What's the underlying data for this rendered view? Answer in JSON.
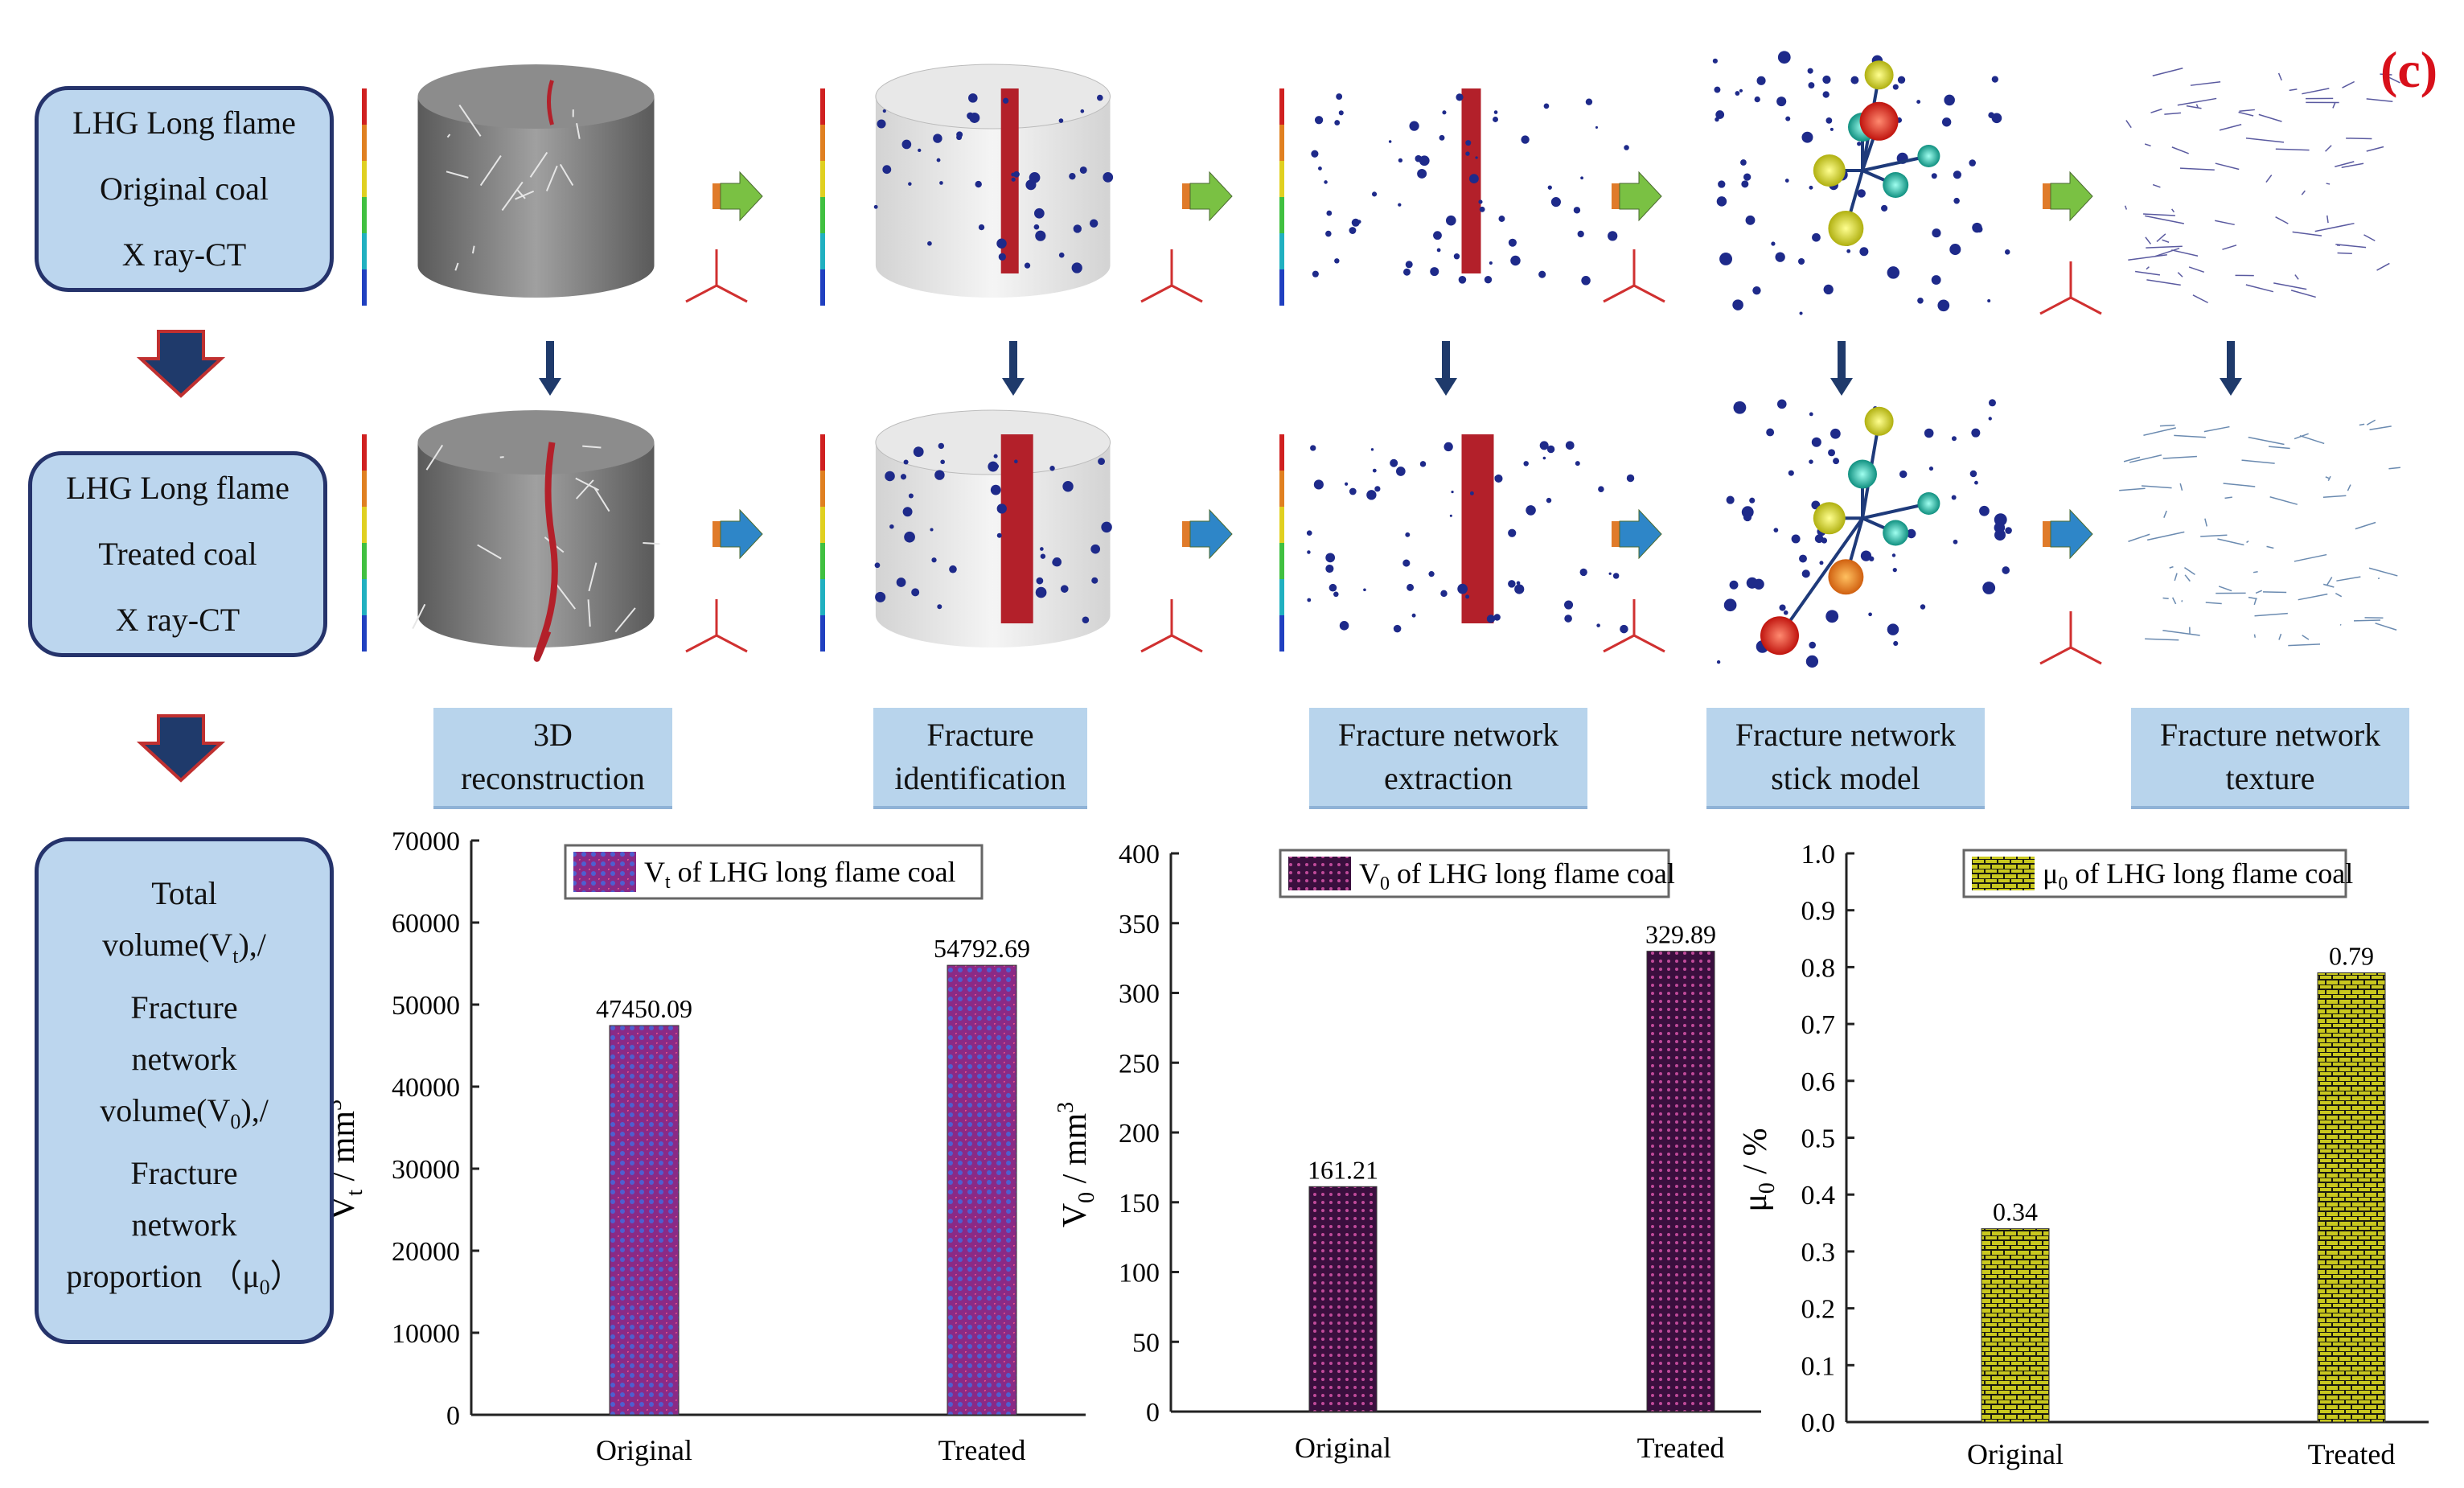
{
  "figure_tag": "(c)",
  "stages": [
    {
      "lines": [
        "LHG Long flame",
        "Original coal",
        "X ray-CT"
      ]
    },
    {
      "lines": [
        "LHG Long flame",
        "Treated coal",
        "X ray-CT"
      ]
    }
  ],
  "metrics_box": {
    "lines": [
      {
        "pre": "Total",
        "sub": "",
        "post": ""
      },
      {
        "pre": "volume(V",
        "sub": "t",
        "post": "),/"
      },
      {
        "pre": "Fracture",
        "sub": "",
        "post": ""
      },
      {
        "pre": "network",
        "sub": "",
        "post": ""
      },
      {
        "pre": "volume(V",
        "sub": "0",
        "post": "),/"
      },
      {
        "pre": "Fracture",
        "sub": "",
        "post": ""
      },
      {
        "pre": "network",
        "sub": "",
        "post": ""
      },
      {
        "pre": "proportion （μ",
        "sub": "0",
        "post": "）"
      }
    ]
  },
  "steps": [
    {
      "line1": "3D",
      "line2": "reconstruction"
    },
    {
      "line1": "Fracture",
      "line2": "identification"
    },
    {
      "line1": "Fracture network",
      "line2": "extraction"
    },
    {
      "line1": "Fracture network",
      "line2": "stick model"
    },
    {
      "line1": "Fracture network",
      "line2": "texture"
    }
  ],
  "colors": {
    "box_fill": "#bcd6ee",
    "box_border": "#25336b",
    "arrow_green": "#7ac143",
    "arrow_blue": "#2e86c8",
    "arrow_tail": "#e07b2a",
    "down_arrow": "#1f3a6b",
    "crack_red": "#b3202a",
    "tag_red": "#d8101a"
  },
  "chart_data": [
    {
      "type": "bar",
      "categories": [
        "Original",
        "Treated"
      ],
      "values": [
        47450.09,
        54792.69
      ],
      "value_labels": [
        "47450.09",
        "54792.69"
      ],
      "ylim": [
        0,
        70000
      ],
      "yticks": [
        "0",
        "10000",
        "20000",
        "30000",
        "40000",
        "50000",
        "60000",
        "70000"
      ],
      "ytick_values": [
        0,
        10000,
        20000,
        30000,
        40000,
        50000,
        60000,
        70000
      ],
      "ylabel": {
        "main": "V",
        "sub": "t",
        "unit": " / mm",
        "sup": "3"
      },
      "legend": {
        "sym": "V",
        "sub": "t",
        "text": " of LHG long flame coal",
        "placement": "top"
      },
      "fill": "#8a2a86",
      "dot": "#4e5fd0"
    },
    {
      "type": "bar",
      "categories": [
        "Original",
        "Treated"
      ],
      "values": [
        161.21,
        329.89
      ],
      "value_labels": [
        "161.21",
        "329.89"
      ],
      "ylim": [
        0,
        400
      ],
      "yticks": [
        "0",
        "50",
        "100",
        "150",
        "200",
        "250",
        "300",
        "350",
        "400"
      ],
      "ytick_values": [
        0,
        50,
        100,
        150,
        200,
        250,
        300,
        350,
        400
      ],
      "ylabel": {
        "main": "V",
        "sub": "0",
        "unit": " / mm",
        "sup": "3"
      },
      "legend": {
        "sym": "V",
        "sub": "0",
        "text": " of LHG long flame coal",
        "placement": "top"
      },
      "fill": "#3a0f3e",
      "dot": "#c04a9a"
    },
    {
      "type": "bar",
      "categories": [
        "Original",
        "Treated"
      ],
      "values": [
        0.34,
        0.79
      ],
      "value_labels": [
        "0.34",
        "0.79"
      ],
      "ylim": [
        0,
        1.0
      ],
      "yticks": [
        "0.0",
        "0.1",
        "0.2",
        "0.3",
        "0.4",
        "0.5",
        "0.6",
        "0.7",
        "0.8",
        "0.9",
        "1.0"
      ],
      "ytick_values": [
        0,
        0.1,
        0.2,
        0.3,
        0.4,
        0.5,
        0.6,
        0.7,
        0.8,
        0.9,
        1.0
      ],
      "ylabel": {
        "main": "μ",
        "sub": "0",
        "unit": " / %",
        "sup": ""
      },
      "legend": {
        "sym": "μ",
        "sub": "0",
        "text": " of LHG long flame coal",
        "placement": "top"
      },
      "fill": "#c9c81e",
      "dot": "#1a1a10"
    }
  ]
}
